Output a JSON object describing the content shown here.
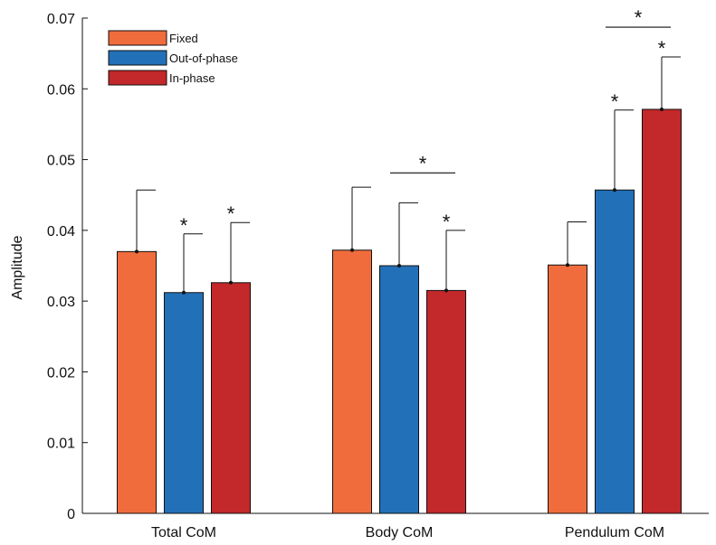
{
  "chart_data": {
    "type": "bar",
    "categories": [
      "Total CoM",
      "Body CoM",
      "Pendulum CoM"
    ],
    "series": [
      {
        "name": "Fixed",
        "color": "#F06C3C",
        "values": [
          0.037,
          0.0372,
          0.0351
        ],
        "errors": [
          0.0087,
          0.0089,
          0.0061
        ],
        "significant": [
          false,
          false,
          false
        ]
      },
      {
        "name": "Out-of-phase",
        "color": "#2270B8",
        "values": [
          0.0312,
          0.035,
          0.0457
        ],
        "errors": [
          0.0083,
          0.0089,
          0.0113
        ],
        "significant": [
          true,
          false,
          true
        ]
      },
      {
        "name": "In-phase",
        "color": "#C3282A",
        "values": [
          0.0326,
          0.0315,
          0.0571
        ],
        "errors": [
          0.0085,
          0.0085,
          0.0074
        ],
        "significant": [
          true,
          true,
          true
        ]
      }
    ],
    "comparisons": [
      {
        "category": "Body CoM",
        "between": [
          "Out-of-phase",
          "In-phase"
        ],
        "marker": "*"
      },
      {
        "category": "Pendulum CoM",
        "between": [
          "Out-of-phase",
          "In-phase"
        ],
        "marker": "*"
      }
    ],
    "significance_marker": "*",
    "ylabel": "Amplitude",
    "xlabel": "",
    "title": "",
    "ylim": [
      0,
      0.07
    ],
    "yticks": [
      "0",
      "0.01",
      "0.02",
      "0.03",
      "0.04",
      "0.05",
      "0.06",
      "0.07"
    ],
    "legend_position": "top-left",
    "grid": false
  }
}
